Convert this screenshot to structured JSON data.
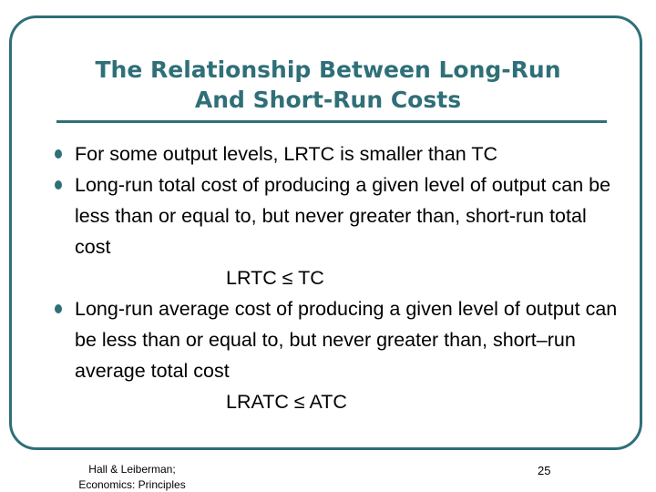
{
  "slide": {
    "title_line1": "The Relationship Between Long-Run",
    "title_line2": "And Short-Run Costs",
    "bullets": [
      "For some output levels, LRTC is smaller than TC",
      "Long-run total cost of producing a given level of output can be less than or equal to, but never greater than, short-run total cost",
      "Long-run average cost of producing a given level of output can be less than or equal to, but never greater than, short–run average total cost"
    ],
    "equations": [
      "LRTC ≤ TC",
      "LRATC ≤ ATC"
    ],
    "footer": {
      "line1": "Hall & Leiberman;",
      "line2": "Economics:  Principles",
      "page": "25"
    },
    "colors": {
      "accent": "#2f6f78",
      "text": "#000000",
      "background": "#ffffff"
    },
    "icons": {
      "bullet": "bullet-dot-icon"
    }
  }
}
